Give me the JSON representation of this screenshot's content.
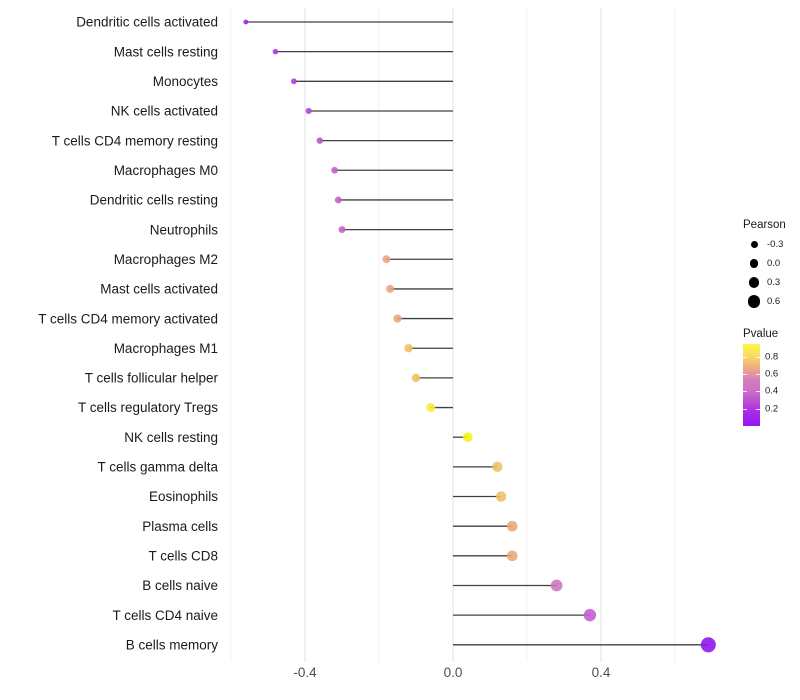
{
  "chart_data": {
    "type": "lollipop",
    "title": "",
    "xlabel": "",
    "ylabel": "",
    "categories": [
      "Dendritic cells activated",
      "Mast cells resting",
      "Monocytes",
      "NK cells activated",
      "T cells CD4 memory resting",
      "Macrophages M0",
      "Dendritic cells resting",
      "Neutrophils",
      "Macrophages M2",
      "Mast cells activated",
      "T cells CD4 memory activated",
      "Macrophages M1",
      "T cells follicular helper",
      "T cells regulatory  Tregs",
      "NK cells resting",
      "T cells gamma delta",
      "Eosinophils",
      "Plasma cells",
      "T cells CD8",
      "B cells naive",
      "T cells CD4 naive",
      "B cells memory"
    ],
    "values": [
      -0.56,
      -0.48,
      -0.43,
      -0.39,
      -0.36,
      -0.32,
      -0.31,
      -0.3,
      -0.18,
      -0.17,
      -0.15,
      -0.12,
      -0.1,
      -0.06,
      0.04,
      0.12,
      0.13,
      0.16,
      0.16,
      0.28,
      0.37,
      0.69
    ],
    "point_colors": [
      "#9B1DF0",
      "#A636E3",
      "#AE3FDC",
      "#B046D9",
      "#BC52CF",
      "#C45BC9",
      "#C75EC7",
      "#C75EC7",
      "#ECA081",
      "#ECA081",
      "#ECA37E",
      "#EFC25F",
      "#EFC25F",
      "#F5EC32",
      "#F6F112",
      "#EDC263",
      "#EDC263",
      "#EBA876",
      "#EBA876",
      "#CA74BC",
      "#C15CD1",
      "#8C12F0"
    ],
    "xlim": [
      -0.61,
      0.74
    ],
    "x_tick_values": [
      -0.4,
      0.0,
      0.4
    ],
    "x_tick_labels": [
      "-0.4",
      "0.0",
      "0.4"
    ],
    "x_grid_major": [
      -0.4,
      0.0,
      0.4
    ],
    "x_grid_minor": [
      -0.6,
      -0.2,
      0.2,
      0.6
    ],
    "grid": "vertical-only",
    "legend_position": "right",
    "legends": {
      "size": {
        "title": "Pearson",
        "entries": [
          {
            "label": "-0.3",
            "value": -0.3
          },
          {
            "label": "0.0",
            "value": 0.0
          },
          {
            "label": "0.3",
            "value": 0.3
          },
          {
            "label": "0.6",
            "value": 0.6
          }
        ],
        "dot_color": "#000000"
      },
      "color": {
        "title": "Pvalue",
        "tick_labels": [
          "0.8",
          "0.6",
          "0.4",
          "0.2"
        ],
        "tick_values": [
          0.8,
          0.6,
          0.4,
          0.2
        ],
        "bar_top_value": 0.95,
        "bar_bottom_value": 0.0,
        "gradient_top_to_bottom": [
          "#FBF840",
          "#F6DC67",
          "#EFAF7E",
          "#D67FBB",
          "#CC6FC4",
          "#BA4AD8",
          "#A527EA",
          "#9915F5"
        ]
      }
    },
    "colors": {
      "segment": "#404040",
      "grid_major": "#e4e4e4",
      "grid_minor": "#f1f1f1",
      "axis_text": "#4d4d4d",
      "category_text": "#1a1a1a",
      "background": "#ffffff"
    }
  }
}
